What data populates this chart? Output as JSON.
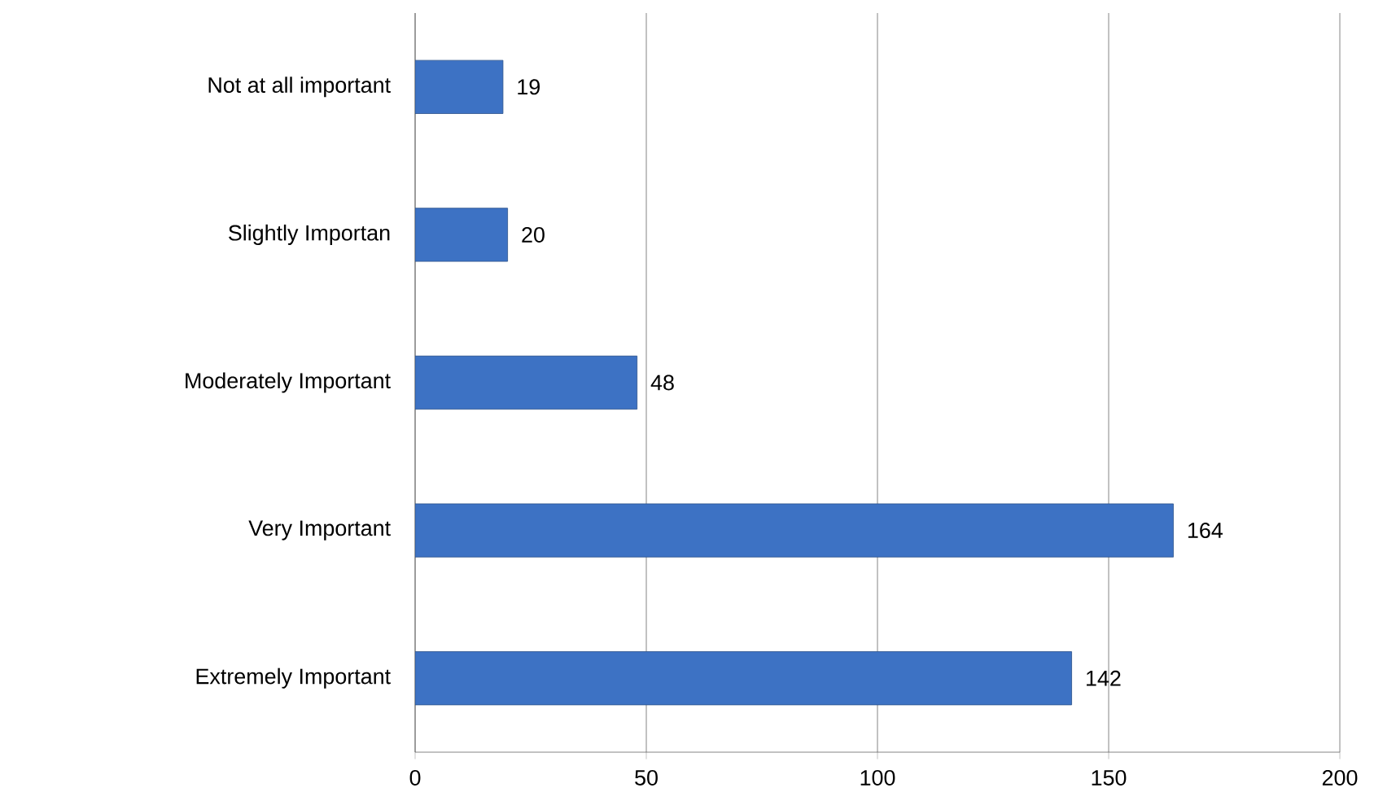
{
  "chart_data": {
    "type": "bar",
    "orientation": "horizontal",
    "categories": [
      "Not at all important",
      "Slightly Importan",
      "Moderately Important",
      "Very Important",
      "Extremely Important"
    ],
    "values": [
      19,
      20,
      48,
      164,
      142
    ],
    "color": "#3d72c4",
    "xlim": [
      0,
      200
    ],
    "xticks": [
      0,
      50,
      100,
      150,
      200
    ],
    "grid": "x",
    "data_labels": true
  }
}
